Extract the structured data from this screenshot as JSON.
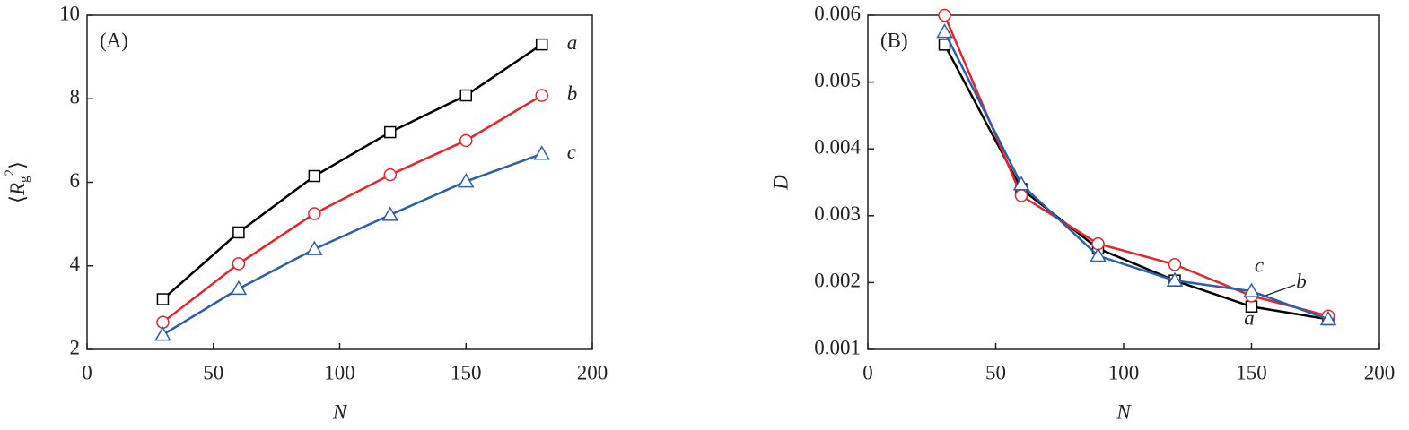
{
  "chart_data": [
    {
      "type": "line",
      "annotation": "(A)",
      "x_label": "N",
      "y_label_parts": [
        "⟨",
        "R",
        "g",
        "2",
        "⟩"
      ],
      "x": [
        30,
        60,
        90,
        120,
        150,
        180
      ],
      "xlim": [
        0,
        200
      ],
      "xticks": [
        0,
        50,
        100,
        150,
        200
      ],
      "ylim": [
        2,
        10
      ],
      "yticks": [
        2,
        4,
        6,
        8,
        10
      ],
      "series": [
        {
          "name": "a",
          "color": "#000000",
          "marker": "square",
          "values": [
            3.2,
            4.8,
            6.15,
            7.2,
            8.08,
            9.3
          ]
        },
        {
          "name": "b",
          "color": "#e8242a",
          "marker": "circle",
          "values": [
            2.65,
            4.05,
            5.25,
            6.18,
            7.0,
            8.08
          ]
        },
        {
          "name": "c",
          "color": "#2b5faa",
          "marker": "triangle",
          "values": [
            2.35,
            3.45,
            4.4,
            5.22,
            6.02,
            6.68
          ]
        }
      ]
    },
    {
      "type": "line",
      "annotation": "(B)",
      "x_label": "N",
      "y_label": "D",
      "x": [
        30,
        60,
        90,
        120,
        150,
        180
      ],
      "xlim": [
        0,
        200
      ],
      "xticks": [
        0,
        50,
        100,
        150,
        200
      ],
      "ylim": [
        0.001,
        0.006
      ],
      "yticks": [
        0.001,
        0.002,
        0.003,
        0.004,
        0.005,
        0.006
      ],
      "series": [
        {
          "name": "a",
          "color": "#000000",
          "marker": "square",
          "values": [
            0.00556,
            0.0034,
            0.00251,
            0.00203,
            0.00164,
            0.00145
          ]
        },
        {
          "name": "b",
          "color": "#e8242a",
          "marker": "circle",
          "values": [
            0.006,
            0.0033,
            0.00258,
            0.00227,
            0.0018,
            0.0015
          ]
        },
        {
          "name": "c",
          "color": "#2b5faa",
          "marker": "triangle",
          "values": [
            0.00575,
            0.00347,
            0.0024,
            0.00203,
            0.00187,
            0.00145
          ]
        }
      ]
    }
  ]
}
